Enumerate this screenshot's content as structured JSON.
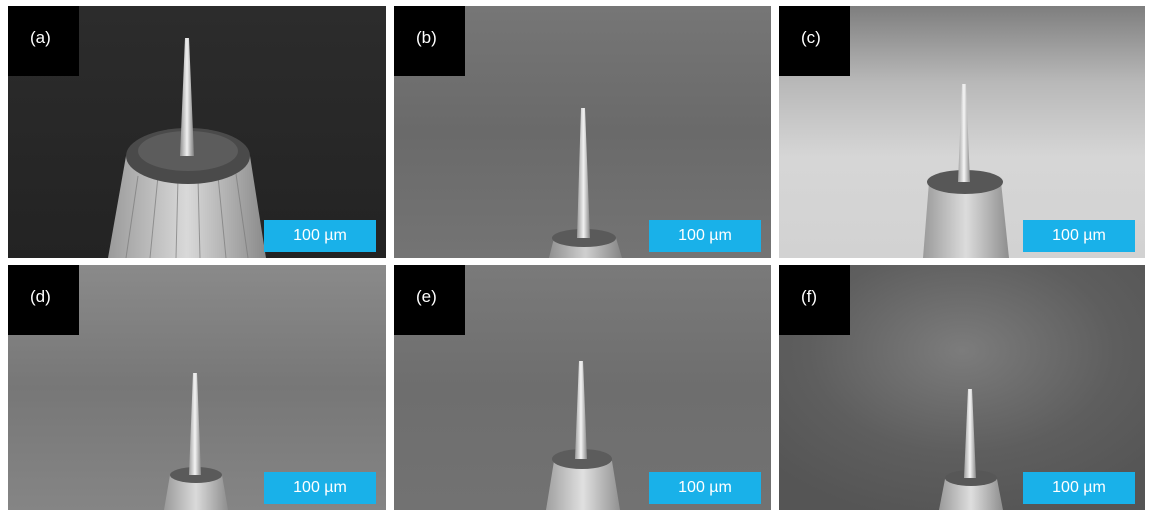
{
  "figure": {
    "panels": [
      {
        "label": "(a)",
        "scale_bar": "100 µm"
      },
      {
        "label": "(b)",
        "scale_bar": "100 µm"
      },
      {
        "label": "(c)",
        "scale_bar": "100 µm"
      },
      {
        "label": "(d)",
        "scale_bar": "100 µm"
      },
      {
        "label": "(e)",
        "scale_bar": "100 µm"
      },
      {
        "label": "(f)",
        "scale_bar": "100 µm"
      }
    ]
  }
}
